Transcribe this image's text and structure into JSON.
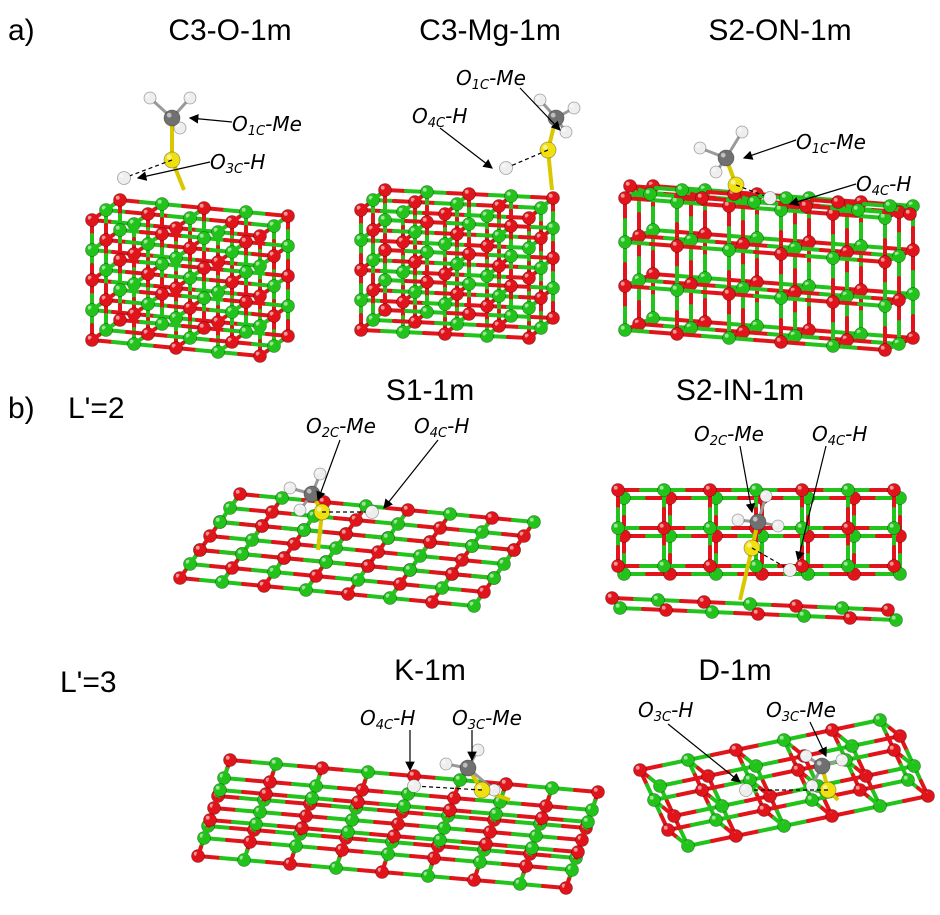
{
  "labels": {
    "a": "a)",
    "b": "b)",
    "l2": "L'=2",
    "l3": "L'=3"
  },
  "panels": [
    {
      "title": "C3-O-1m",
      "annotations": [
        {
          "base": "O",
          "sub": "1C",
          "rest": "-Me"
        },
        {
          "base": "O",
          "sub": "3C",
          "rest": "-H"
        }
      ]
    },
    {
      "title": "C3-Mg-1m",
      "annotations": [
        {
          "base": "O",
          "sub": "1C",
          "rest": "-Me"
        },
        {
          "base": "O",
          "sub": "4C",
          "rest": "-H"
        }
      ]
    },
    {
      "title": "S2-ON-1m",
      "annotations": [
        {
          "base": "O",
          "sub": "1C",
          "rest": "-Me"
        },
        {
          "base": "O",
          "sub": "4C",
          "rest": "-H"
        }
      ]
    },
    {
      "title": "S1-1m",
      "annotations": [
        {
          "base": "O",
          "sub": "2C",
          "rest": "-Me"
        },
        {
          "base": "O",
          "sub": "4C",
          "rest": "-H"
        }
      ]
    },
    {
      "title": "S2-IN-1m",
      "annotations": [
        {
          "base": "O",
          "sub": "2C",
          "rest": "-Me"
        },
        {
          "base": "O",
          "sub": "4C",
          "rest": "-H"
        }
      ]
    },
    {
      "title": "K-1m",
      "annotations": [
        {
          "base": "O",
          "sub": "4C",
          "rest": "-H"
        },
        {
          "base": "O",
          "sub": "3C",
          "rest": "-Me"
        }
      ]
    },
    {
      "title": "D-1m",
      "annotations": [
        {
          "base": "O",
          "sub": "3C",
          "rest": "-H"
        },
        {
          "base": "O",
          "sub": "3C",
          "rest": "-Me"
        }
      ]
    }
  ],
  "colors": {
    "oxygen": "#e0141a",
    "magnesium": "#22c41c",
    "sulfur": "#f0e010",
    "carbon": "#707070",
    "hydrogen": "#eeeeee",
    "bond_green": "#22c41c",
    "bond_red": "#e0141a"
  }
}
